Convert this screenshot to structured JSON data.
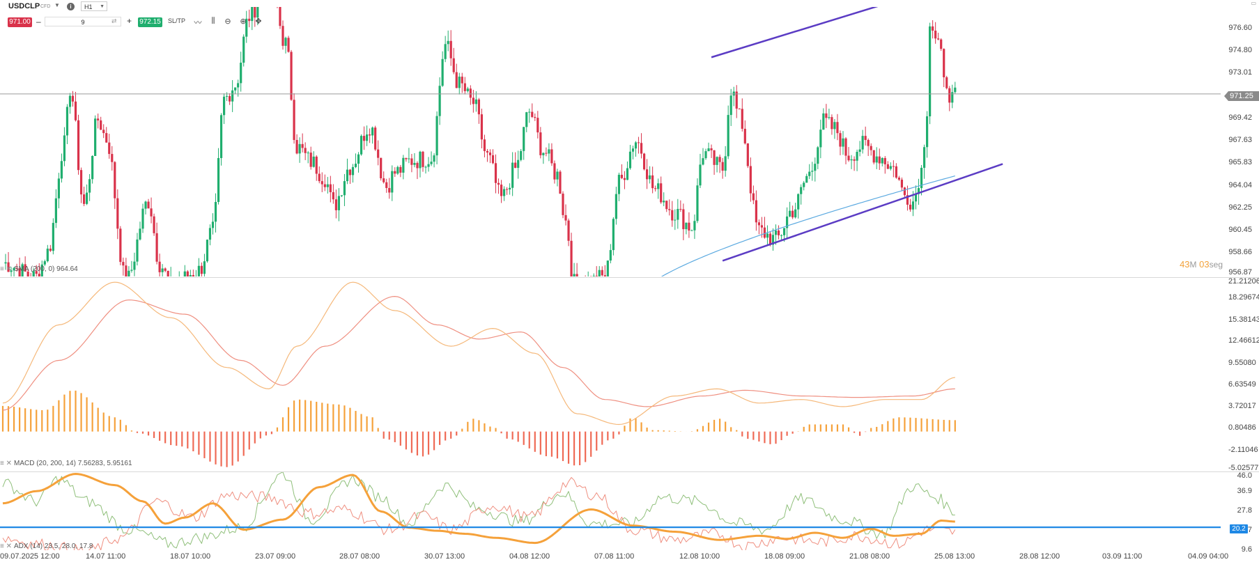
{
  "toolbar": {
    "symbol": "USDCLP",
    "symbol_type": "CFD",
    "timeframe": "H1",
    "sell_price": "971.00",
    "quantity": "9",
    "buy_price": "972.15",
    "sltp_label": "SL/TP",
    "icons": [
      "line-chart-icon",
      "candles-icon",
      "zoom-out-icon",
      "zoom-in-icon",
      "crosshair-icon"
    ]
  },
  "price_axis": {
    "labels": [
      "976.60",
      "974.80",
      "973.01",
      "969.42",
      "967.63",
      "965.83",
      "964.04",
      "962.25",
      "960.45",
      "958.66",
      "956.87"
    ],
    "current_price": "971.25"
  },
  "countdown": {
    "minutes": "43",
    "m_unit": "M",
    "seconds": "03",
    "s_unit": "seg"
  },
  "sma_legend": "SMA (200, 0) 964.64",
  "macd_axis": {
    "labels": [
      "21.21206",
      "18.29674",
      "15.38143",
      "12.46612",
      "9.55080",
      "6.63549",
      "3.72017",
      "0.80486",
      "-2.11046",
      "-5.02577"
    ]
  },
  "macd_legend": "MACD (20, 200, 14) 7.56283, 5.95161",
  "adx_axis": {
    "labels": [
      "46.0",
      "36.9",
      "27.8",
      "18.7",
      "9.6"
    ],
    "level": "20.2"
  },
  "adx_legend": "ADX (14) 23.5, 28.0, 17.8",
  "date_axis": {
    "labels": [
      "09.07.2025 12:00",
      "14.07 11:00",
      "18.07 10:00",
      "23.07 09:00",
      "28.07 08:00",
      "30.07 13:00",
      "04.08 12:00",
      "07.08 11:00",
      "12.08 10:00",
      "18.08 09:00",
      "21.08 08:00",
      "25.08 13:00",
      "28.08 12:00",
      "03.09 11:00",
      "04.09 04:00"
    ]
  },
  "colors": {
    "up": "#1fae6e",
    "down": "#d9324a",
    "channel": "#5b3cc4",
    "sma": "#5aa9e0",
    "macd_line": "#f5b87a",
    "signal_line": "#ef8f80",
    "hist_pos": "#f5a13a",
    "hist_neg": "#ef6a55",
    "adx": "#f5a13a",
    "di_plus": "#8fbf7a",
    "di_minus": "#ef8f80",
    "level": "#1e88e5"
  },
  "chart_data": [
    {
      "type": "candlestick",
      "title": "USDCLP",
      "timeframe": "H1",
      "x_labels": [
        "09.07.2025 12:00",
        "14.07 11:00",
        "18.07 10:00",
        "23.07 09:00",
        "28.07 08:00",
        "30.07 13:00",
        "04.08 12:00",
        "07.08 11:00",
        "12.08 10:00",
        "18.08 09:00",
        "21.08 08:00",
        "25.08 13:00",
        "28.08 12:00",
        "03.09 11:00",
        "04.09 04:00"
      ],
      "ylim": [
        956.87,
        978.4
      ],
      "grid": false,
      "close_anchors": [
        [
          0,
          957.6
        ],
        [
          12,
          956.5
        ],
        [
          16,
          958.5
        ],
        [
          22,
          967.2
        ],
        [
          24,
          971.7
        ],
        [
          29,
          962.3
        ],
        [
          34,
          969.2
        ],
        [
          37,
          967.6
        ],
        [
          44,
          956.1
        ],
        [
          52,
          962.6
        ],
        [
          56,
          957.6
        ],
        [
          60,
          955.8
        ],
        [
          70,
          957.0
        ],
        [
          75,
          960.2
        ],
        [
          79,
          970.8
        ],
        [
          83,
          972.0
        ],
        [
          88,
          977.5
        ],
        [
          95,
          981.0
        ],
        [
          101,
          975.3
        ],
        [
          105,
          967.0
        ],
        [
          110,
          965.8
        ],
        [
          115,
          964.5
        ],
        [
          118,
          962.2
        ],
        [
          124,
          965.4
        ],
        [
          131,
          968.7
        ],
        [
          137,
          963.8
        ],
        [
          140,
          964.9
        ],
        [
          146,
          965.9
        ],
        [
          153,
          966.1
        ],
        [
          158,
          975.2
        ],
        [
          163,
          972.0
        ],
        [
          168,
          970.5
        ],
        [
          173,
          966.2
        ],
        [
          178,
          962.8
        ],
        [
          183,
          965.2
        ],
        [
          188,
          969.8
        ],
        [
          193,
          966.7
        ],
        [
          198,
          964.7
        ],
        [
          201,
          961.0
        ],
        [
          204,
          956.0
        ],
        [
          208,
          956.0
        ],
        [
          215,
          956.5
        ],
        [
          220,
          964.1
        ],
        [
          226,
          967.5
        ],
        [
          233,
          963.5
        ],
        [
          240,
          961.7
        ],
        [
          246,
          960.5
        ],
        [
          250,
          966.5
        ],
        [
          257,
          965.2
        ],
        [
          260,
          971.7
        ],
        [
          263,
          969.3
        ],
        [
          270,
          960.2
        ],
        [
          276,
          959.5
        ],
        [
          282,
          961.9
        ],
        [
          288,
          964.8
        ],
        [
          293,
          969.0
        ],
        [
          297,
          968.4
        ],
        [
          302,
          966.3
        ],
        [
          307,
          967.1
        ],
        [
          313,
          966.2
        ],
        [
          318,
          965.3
        ],
        [
          322,
          963.1
        ],
        [
          325,
          962.6
        ],
        [
          328,
          965.1
        ],
        [
          330,
          970.1
        ],
        [
          331,
          977.0
        ],
        [
          334,
          974.9
        ],
        [
          337,
          972.5
        ],
        [
          338,
          970.0
        ],
        [
          340,
          971.2
        ]
      ],
      "sma": {
        "name": "SMA (200, 0)",
        "last": 964.64
      },
      "current_price": 971.25,
      "channel": {
        "upper": [
          [
            253,
            974.2
          ],
          [
            315,
            978.5
          ]
        ],
        "lower": [
          [
            257,
            957.8
          ],
          [
            357,
            965.6
          ]
        ]
      }
    },
    {
      "type": "line",
      "title": "MACD (20, 200, 14)",
      "ylim": [
        -5.02577,
        21.21206
      ],
      "macd_last": 7.56283,
      "signal_last": 5.95161,
      "series_anchors": {
        "macd": [
          [
            0,
            4.0
          ],
          [
            20,
            15.0
          ],
          [
            40,
            21.0
          ],
          [
            60,
            16.0
          ],
          [
            80,
            9.0
          ],
          [
            95,
            6.0
          ],
          [
            105,
            12.0
          ],
          [
            125,
            21.0
          ],
          [
            140,
            17.0
          ],
          [
            160,
            12.0
          ],
          [
            175,
            14.5
          ],
          [
            190,
            11.0
          ],
          [
            205,
            2.5
          ],
          [
            220,
            1.0
          ],
          [
            240,
            5.0
          ],
          [
            255,
            6.0
          ],
          [
            270,
            4.0
          ],
          [
            285,
            4.5
          ],
          [
            300,
            3.5
          ],
          [
            315,
            4.5
          ],
          [
            328,
            4.5
          ],
          [
            340,
            7.6
          ]
        ],
        "signal": [
          [
            0,
            3.0
          ],
          [
            20,
            10.0
          ],
          [
            45,
            18.5
          ],
          [
            65,
            16.5
          ],
          [
            85,
            10.0
          ],
          [
            100,
            6.5
          ],
          [
            115,
            12.0
          ],
          [
            140,
            19.0
          ],
          [
            155,
            15.0
          ],
          [
            170,
            13.0
          ],
          [
            185,
            14.0
          ],
          [
            200,
            9.0
          ],
          [
            215,
            4.5
          ],
          [
            230,
            3.5
          ],
          [
            250,
            5.0
          ],
          [
            265,
            5.8
          ],
          [
            285,
            5.0
          ],
          [
            305,
            4.8
          ],
          [
            325,
            5.0
          ],
          [
            340,
            6.0
          ]
        ],
        "histogram": [
          [
            0,
            3.6
          ],
          [
            15,
            3.0
          ],
          [
            25,
            5.8
          ],
          [
            40,
            2.0
          ],
          [
            48,
            -0.2
          ],
          [
            62,
            -2.0
          ],
          [
            80,
            -5.0
          ],
          [
            95,
            -0.5
          ],
          [
            105,
            4.5
          ],
          [
            120,
            3.8
          ],
          [
            132,
            2.0
          ],
          [
            136,
            -1.0
          ],
          [
            150,
            -3.5
          ],
          [
            160,
            -1.0
          ],
          [
            168,
            1.8
          ],
          [
            176,
            0.5
          ],
          [
            180,
            -1.0
          ],
          [
            195,
            -3.5
          ],
          [
            205,
            -4.8
          ],
          [
            218,
            -1.0
          ],
          [
            225,
            2.0
          ],
          [
            232,
            0.2
          ],
          [
            245,
            0.0
          ],
          [
            256,
            1.8
          ],
          [
            262,
            0.2
          ],
          [
            265,
            -1.0
          ],
          [
            275,
            -1.8
          ],
          [
            282,
            -0.3
          ],
          [
            288,
            1.0
          ],
          [
            300,
            1.0
          ],
          [
            306,
            -0.6
          ],
          [
            310,
            0.5
          ],
          [
            320,
            2.0
          ],
          [
            340,
            1.6
          ]
        ]
      }
    },
    {
      "type": "line",
      "title": "ADX (14)",
      "ylim": [
        9.6,
        46.0
      ],
      "adx_last": 23.5,
      "di_plus_last": 28.0,
      "di_minus_last": 17.8,
      "level": 20.2,
      "series_anchors": {
        "adx": [
          [
            0,
            32.0
          ],
          [
            12,
            38.0
          ],
          [
            26,
            46.5
          ],
          [
            40,
            41.0
          ],
          [
            50,
            33.0
          ],
          [
            58,
            22.0
          ],
          [
            65,
            25.0
          ],
          [
            75,
            32.0
          ],
          [
            86,
            19.0
          ],
          [
            100,
            24.0
          ],
          [
            113,
            40.0
          ],
          [
            125,
            46.0
          ],
          [
            135,
            28.0
          ],
          [
            145,
            20.0
          ],
          [
            155,
            18.5
          ],
          [
            165,
            17.0
          ],
          [
            176,
            15.0
          ],
          [
            190,
            12.5
          ],
          [
            210,
            29.0
          ],
          [
            225,
            21.0
          ],
          [
            240,
            18.0
          ],
          [
            256,
            14.0
          ],
          [
            270,
            16.0
          ],
          [
            280,
            14.5
          ],
          [
            290,
            17.5
          ],
          [
            300,
            15.0
          ],
          [
            310,
            19.5
          ],
          [
            318,
            16.0
          ],
          [
            328,
            17.0
          ],
          [
            335,
            23.5
          ],
          [
            340,
            23.0
          ]
        ],
        "di_plus": [
          [
            0,
            42.0
          ],
          [
            12,
            33.0
          ],
          [
            20,
            44.0
          ],
          [
            30,
            33.0
          ],
          [
            45,
            19.0
          ],
          [
            60,
            12.0
          ],
          [
            70,
            15.0
          ],
          [
            85,
            20.0
          ],
          [
            100,
            46.5
          ],
          [
            110,
            24.0
          ],
          [
            125,
            44.0
          ],
          [
            135,
            35.0
          ],
          [
            145,
            22.0
          ],
          [
            158,
            41.0
          ],
          [
            170,
            29.0
          ],
          [
            185,
            23.0
          ],
          [
            200,
            37.0
          ],
          [
            210,
            22.0
          ],
          [
            225,
            22.0
          ],
          [
            235,
            35.0
          ],
          [
            248,
            33.0
          ],
          [
            262,
            22.0
          ],
          [
            272,
            19.0
          ],
          [
            285,
            34.0
          ],
          [
            300,
            24.0
          ],
          [
            314,
            17.0
          ],
          [
            325,
            40.5
          ],
          [
            333,
            35.0
          ],
          [
            340,
            28.0
          ]
        ],
        "di_minus": [
          [
            0,
            15.0
          ],
          [
            12,
            12.0
          ],
          [
            30,
            8.5
          ],
          [
            42,
            15.0
          ],
          [
            55,
            33.0
          ],
          [
            68,
            25.0
          ],
          [
            80,
            36.0
          ],
          [
            95,
            35.0
          ],
          [
            110,
            27.0
          ],
          [
            122,
            29.0
          ],
          [
            138,
            19.0
          ],
          [
            150,
            26.0
          ],
          [
            160,
            19.0
          ],
          [
            175,
            31.0
          ],
          [
            188,
            25.0
          ],
          [
            202,
            42.0
          ],
          [
            212,
            36.0
          ],
          [
            225,
            19.0
          ],
          [
            240,
            14.0
          ],
          [
            255,
            17.0
          ],
          [
            265,
            11.0
          ],
          [
            278,
            15.0
          ],
          [
            292,
            13.0
          ],
          [
            305,
            16.0
          ],
          [
            320,
            12.0
          ],
          [
            330,
            19.0
          ],
          [
            340,
            17.8
          ]
        ]
      }
    }
  ]
}
